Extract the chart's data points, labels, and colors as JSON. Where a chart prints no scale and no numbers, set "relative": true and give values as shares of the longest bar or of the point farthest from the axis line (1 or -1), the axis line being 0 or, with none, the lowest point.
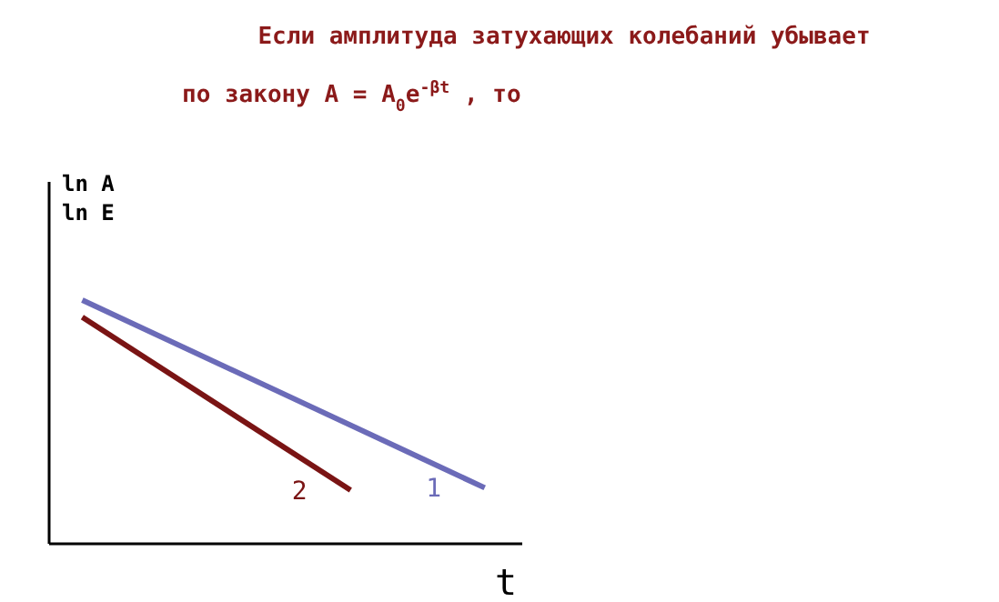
{
  "chart_data": {
    "type": "line",
    "title": "Если амплитуда затухающих колебаний убывает",
    "subtitle": "по закону  A = A$_{0}$e$^{-βt}$ , то",
    "ylabel": "ln A\nln E",
    "xlabel": "t",
    "relative": true,
    "grid": false,
    "legend": false,
    "marker": "none",
    "line_style": "solid",
    "categories": [
      null,
      null,
      null,
      null
    ],
    "series": [
      {
        "name": "1",
        "color": "#6b6bb8",
        "values": [
          1,
          null,
          null,
          0.23
        ]
      },
      {
        "name": "2",
        "color": "#7a1414",
        "values": [
          0.93,
          null,
          0.22,
          null
        ]
      }
    ]
  }
}
